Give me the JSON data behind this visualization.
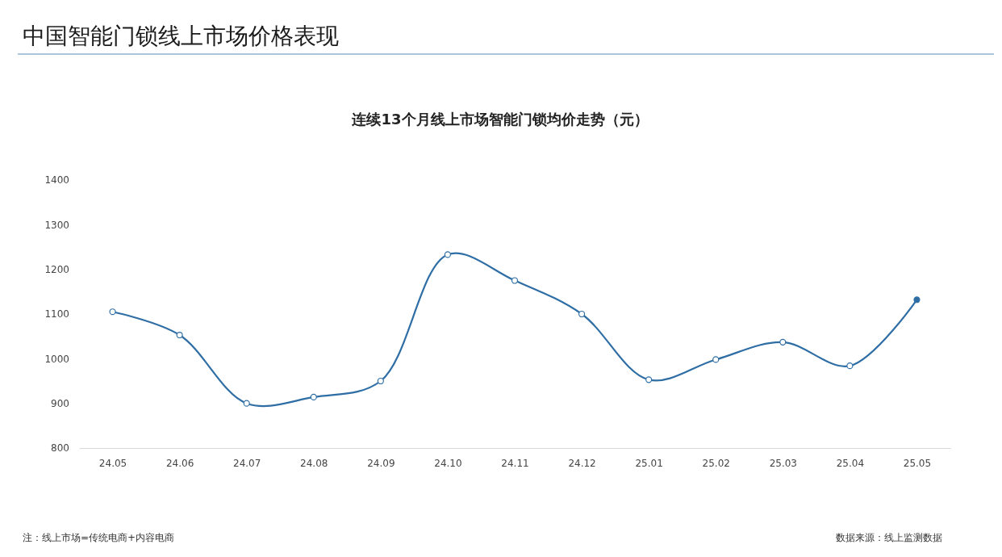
{
  "chart_data": {
    "type": "line",
    "title": "中国智能门锁线上市场价格表现",
    "subtitle": "连续13个月线上市场智能门锁均价走势（元）",
    "categories": [
      "24.05",
      "24.06",
      "24.07",
      "24.08",
      "24.09",
      "24.10",
      "24.11",
      "24.12",
      "25.01",
      "25.02",
      "25.03",
      "25.04",
      "25.05"
    ],
    "series": [
      {
        "color": "#2f6ea5",
        "values": [
          1105,
          1053,
          900,
          914,
          950,
          1233,
          1175,
          1100,
          953,
          998,
          1037,
          984,
          1132
        ]
      }
    ],
    "ylim": [
      800,
      1400
    ],
    "yticks": [
      800,
      900,
      1000,
      1100,
      1200,
      1300,
      1400
    ],
    "marker": "circle",
    "line_style": "solid",
    "annotations": [
      "注：线上市场=传统电商+内容电商",
      "数据来源：线上监测数据"
    ]
  }
}
